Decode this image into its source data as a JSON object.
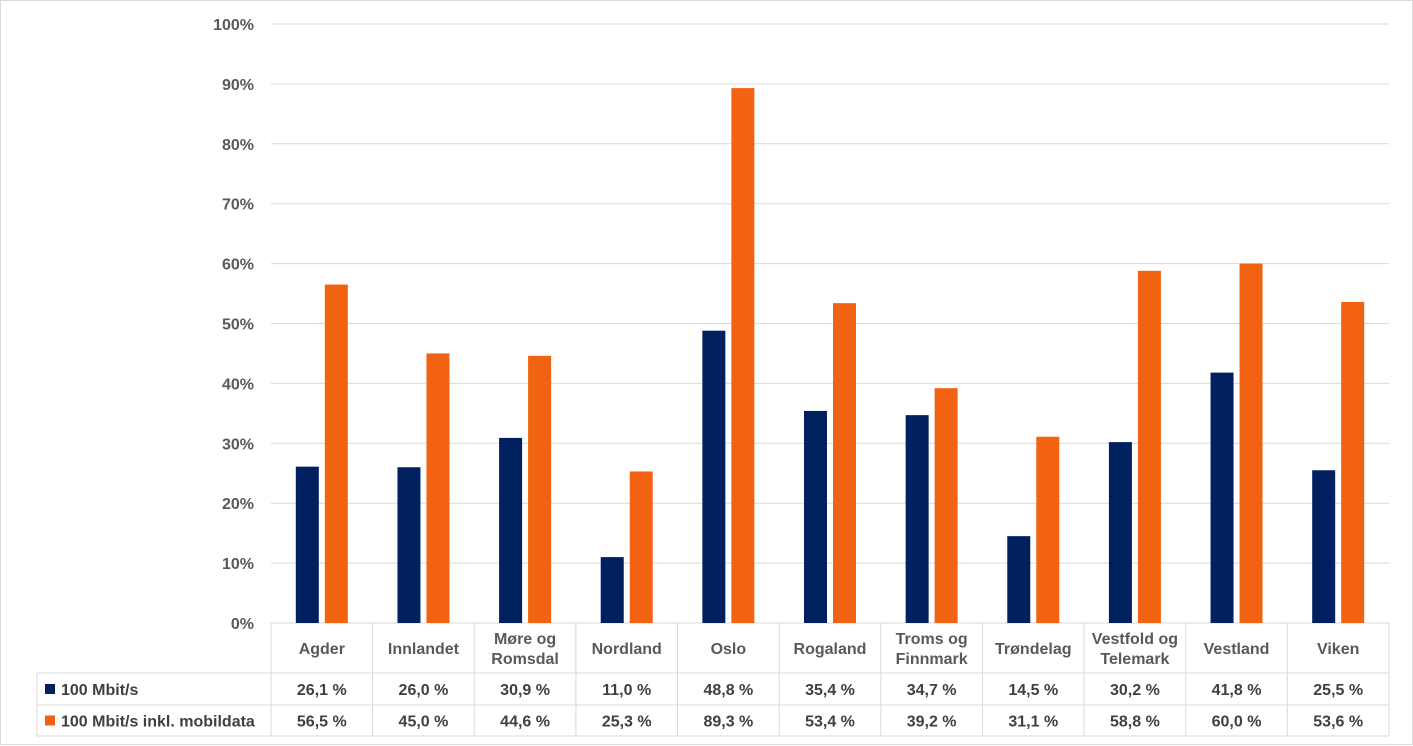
{
  "chart_data": {
    "type": "bar",
    "categories": [
      "Agder",
      "Innlandet",
      "Møre og Romsdal",
      "Nordland",
      "Oslo",
      "Rogaland",
      "Troms og Finnmark",
      "Trøndelag",
      "Vestfold og Telemark",
      "Vestland",
      "Viken"
    ],
    "category_lines": [
      [
        "Agder"
      ],
      [
        "Innlandet"
      ],
      [
        "Møre og",
        "Romsdal"
      ],
      [
        "Nordland"
      ],
      [
        "Oslo"
      ],
      [
        "Rogaland"
      ],
      [
        "Troms og",
        "Finnmark"
      ],
      [
        "Trøndelag"
      ],
      [
        "Vestfold og",
        "Telemark"
      ],
      [
        "Vestland"
      ],
      [
        "Viken"
      ]
    ],
    "series": [
      {
        "name": "100 Mbit/s",
        "color": "#002060",
        "values": [
          26.1,
          26.0,
          30.9,
          11.0,
          48.8,
          35.4,
          34.7,
          14.5,
          30.2,
          41.8,
          25.5
        ],
        "labels": [
          "26,1 %",
          "26,0 %",
          "30,9 %",
          "11,0 %",
          "48,8 %",
          "35,4 %",
          "34,7 %",
          "14,5 %",
          "30,2 %",
          "41,8 %",
          "25,5 %"
        ]
      },
      {
        "name": "100 Mbit/s inkl. mobildata",
        "color": "#F26311",
        "values": [
          56.5,
          45.0,
          44.6,
          25.3,
          89.3,
          53.4,
          39.2,
          31.1,
          58.8,
          60.0,
          53.6
        ],
        "labels": [
          "56,5 %",
          "45,0 %",
          "44,6 %",
          "25,3 %",
          "89,3 %",
          "53,4 %",
          "39,2 %",
          "31,1 %",
          "58,8 %",
          "60,0 %",
          "53,6 %"
        ]
      }
    ],
    "yticks": [
      0,
      10,
      20,
      30,
      40,
      50,
      60,
      70,
      80,
      90,
      100
    ],
    "ytick_labels": [
      "0%",
      "10%",
      "20%",
      "30%",
      "40%",
      "50%",
      "60%",
      "70%",
      "80%",
      "90%",
      "100%"
    ],
    "ylim": [
      0,
      100
    ],
    "grid": true,
    "legend": "data-table"
  }
}
